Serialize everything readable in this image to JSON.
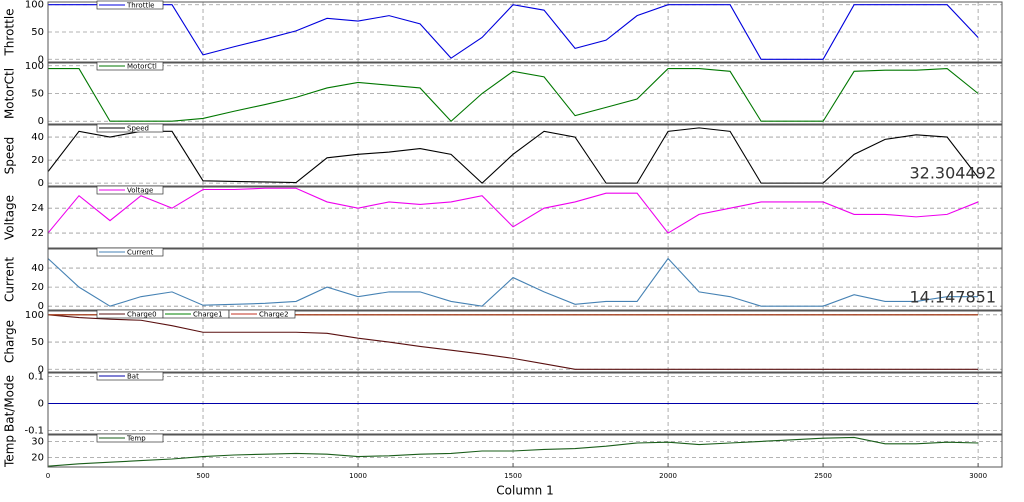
{
  "chart_data": {
    "type": "line",
    "xlabel": "Column 1",
    "x": [
      0,
      100,
      200,
      300,
      400,
      500,
      600,
      700,
      800,
      900,
      1000,
      1100,
      1200,
      1300,
      1400,
      1500,
      1600,
      1700,
      1800,
      1900,
      2000,
      2100,
      2200,
      2300,
      2400,
      2500,
      2600,
      2700,
      2800,
      2900,
      3000
    ],
    "xlim": [
      0,
      3077
    ],
    "xticks": [
      0,
      500,
      1000,
      1500,
      2000,
      2500,
      3000
    ],
    "grid": true,
    "panels": [
      {
        "ylabel": "Throttle",
        "ylim": [
          -5,
          105
        ],
        "yticks": [
          0,
          50,
          100
        ],
        "series": [
          {
            "name": "Throttle",
            "color": "#0000dd",
            "values": [
              100,
              100,
              100,
              100,
              100,
              8,
              23,
              37,
              52,
              75,
              70,
              80,
              65,
              2,
              40,
              100,
              90,
              20,
              35,
              80,
              100,
              100,
              100,
              0,
              0,
              0,
              100,
              100,
              100,
              100,
              40
            ]
          }
        ]
      },
      {
        "ylabel": "MotorCtl",
        "ylim": [
          -5,
          105
        ],
        "yticks": [
          0,
          50,
          100
        ],
        "series": [
          {
            "name": "MotorCtl",
            "color": "#007700",
            "values": [
              95,
              95,
              0,
              0,
              0,
              5,
              18,
              30,
              43,
              60,
              70,
              65,
              60,
              0,
              50,
              90,
              80,
              10,
              25,
              40,
              95,
              95,
              90,
              0,
              0,
              0,
              90,
              92,
              92,
              95,
              50
            ]
          }
        ]
      },
      {
        "ylabel": "Speed",
        "ylim": [
          -2.5,
          50.5
        ],
        "yticks": [
          0,
          20,
          40
        ],
        "annotation": "32.304492",
        "series": [
          {
            "name": "Speed",
            "color": "#000000",
            "values": [
              10,
              45,
              40,
              45,
              45,
              2,
              1.5,
              1,
              0.5,
              22,
              25,
              27,
              30,
              25,
              0,
              25,
              45,
              40,
              0,
              0,
              45,
              48,
              45,
              0,
              0,
              0,
              25,
              38,
              42,
              40,
              5
            ]
          }
        ]
      },
      {
        "ylabel": "Voltage",
        "ylim": [
          20.8,
          25.7
        ],
        "yticks": [
          22,
          24
        ],
        "series": [
          {
            "name": "Voltage",
            "color": "#ee00ee",
            "values": [
              22,
              25,
              23,
              25,
              24,
              25.5,
              25.5,
              25.6,
              25.6,
              24.5,
              24,
              24.5,
              24.3,
              24.5,
              25,
              22.5,
              24,
              24.5,
              25.2,
              25.2,
              22,
              23.5,
              24,
              24.5,
              24.5,
              24.5,
              23.5,
              23.5,
              23.3,
              23.5,
              24.5
            ]
          }
        ]
      },
      {
        "ylabel": "Current",
        "ylim": [
          -4,
          60
        ],
        "yticks": [
          0,
          20,
          40
        ],
        "annotation": "14.147851",
        "series": [
          {
            "name": "Current",
            "color": "#4682b4",
            "values": [
              50,
              20,
              0,
              10,
              15,
              1,
              2,
              3,
              5,
              20,
              10,
              15,
              15,
              5,
              0,
              30,
              15,
              2,
              5,
              5,
              50,
              15,
              10,
              0,
              0,
              0,
              12,
              5,
              5,
              10,
              10
            ]
          }
        ]
      },
      {
        "ylabel": "Charge",
        "ylim": [
          -5,
          107
        ],
        "yticks": [
          0,
          50,
          100
        ],
        "series": [
          {
            "name": "Charge0",
            "color": "#5a1010",
            "values": [
              100,
              95,
              92,
              90,
              80,
              68,
              68,
              68,
              68,
              66,
              57,
              50,
              42,
              35,
              28,
              20,
              10,
              0,
              0,
              0,
              0,
              0,
              0,
              0,
              0,
              0,
              0,
              0,
              0,
              0,
              0
            ]
          },
          {
            "name": "Charge1",
            "color": "#008000",
            "values": [
              100,
              100,
              100,
              100,
              100,
              100,
              100,
              100,
              100,
              100,
              100,
              100,
              100,
              100,
              100,
              100,
              100,
              100,
              100,
              100,
              100,
              100,
              100,
              100,
              100,
              100,
              100,
              100,
              100,
              100,
              100
            ]
          },
          {
            "name": "Charge2",
            "color": "#c03020",
            "values": [
              100,
              100,
              100,
              100,
              100,
              100,
              100,
              100,
              100,
              100,
              100,
              100,
              100,
              100,
              100,
              100,
              100,
              100,
              100,
              100,
              100,
              100,
              100,
              100,
              100,
              100,
              100,
              100,
              100,
              100,
              100
            ]
          }
        ]
      },
      {
        "ylabel": "Bat/Mode",
        "ylim": [
          -0.113,
          0.113
        ],
        "yticks": [
          -0.1,
          0,
          0.1
        ],
        "series": [
          {
            "name": "Bat",
            "color": "#0000aa",
            "values": [
              0,
              0,
              0,
              0,
              0,
              0,
              0,
              0,
              0,
              0,
              0,
              0,
              0,
              0,
              0,
              0,
              0,
              0,
              0,
              0,
              0,
              0,
              0,
              0,
              0,
              0,
              0,
              0,
              0,
              0,
              0
            ]
          }
        ]
      },
      {
        "ylabel": "Temp",
        "ylim": [
          14,
          34
        ],
        "yticks": [
          20,
          30
        ],
        "series": [
          {
            "name": "Temp",
            "color": "#1a5e1a",
            "values": [
              14.5,
              16,
              17,
              18,
              19,
              20.5,
              21.5,
              22,
              22.5,
              22,
              20.5,
              21,
              22,
              22.5,
              24,
              24,
              25,
              25.5,
              27,
              29,
              29.5,
              28,
              29,
              30,
              31,
              32,
              32.5,
              28.5,
              28.5,
              29.5,
              29
            ]
          }
        ]
      }
    ]
  }
}
